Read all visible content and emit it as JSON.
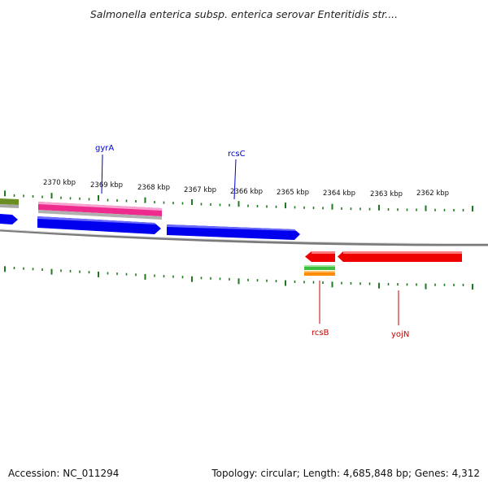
{
  "title": "Salmonella enterica subsp. enterica serovar Enteritidis str....",
  "footer": {
    "accession": "Accession: NC_011294",
    "summary": "Topology: circular; Length: 4,685,848 bp; Genes: 4,312"
  },
  "colors": {
    "forward_cds": "#0000ee",
    "reverse_cds": "#ee0000",
    "rna": "#ee2a8f",
    "tick": "#1f7a1f",
    "backbone": "#7a7a7a",
    "forward_label": "#0000cc",
    "reverse_label": "#cc0000",
    "misc_green": "#3fbf3f",
    "misc_orange": "#ff8c00",
    "misc_olive": "#6b8e23"
  },
  "scale_labels": [
    "2370 kbp",
    "2369 kbp",
    "2368 kbp",
    "2367 kbp",
    "2366 kbp",
    "2365 kbp",
    "2364 kbp",
    "2363 kbp",
    "2362 kbp"
  ],
  "gene_labels": {
    "forward": [
      "gyrA",
      "rcsC"
    ],
    "reverse": [
      "rcsB",
      "yojN"
    ]
  }
}
